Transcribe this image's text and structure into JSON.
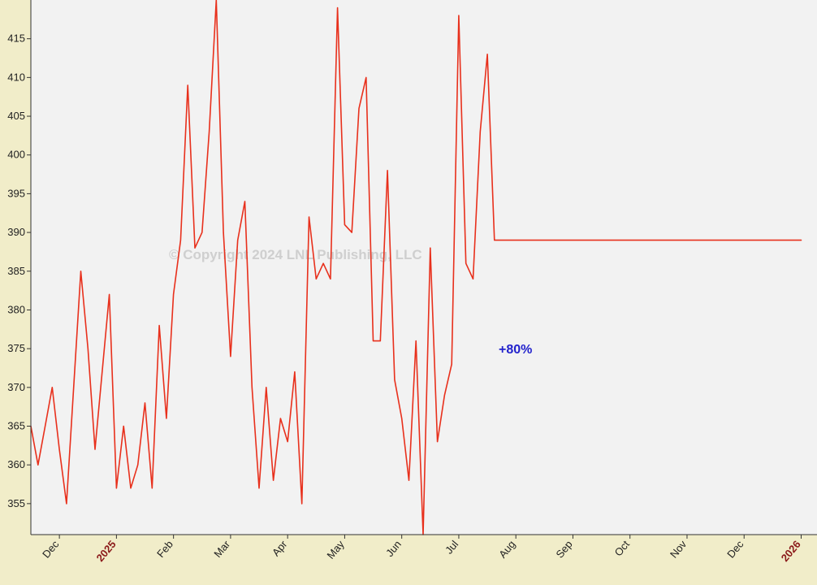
{
  "chart_data": {
    "type": "line",
    "title": "",
    "watermark": "© Copyright 2024 LNL Publishing, LLC",
    "annotation": "+80%",
    "ylim": [
      351,
      420
    ],
    "yticks": [
      355,
      360,
      365,
      370,
      375,
      380,
      385,
      390,
      395,
      400,
      405,
      410,
      415
    ],
    "grid": false,
    "month_ticks": [
      {
        "label": "Dec",
        "x": 1.0,
        "year": false
      },
      {
        "label": "2025",
        "x": 3.0,
        "year": true
      },
      {
        "label": "Feb",
        "x": 5.0,
        "year": false
      },
      {
        "label": "Mar",
        "x": 7.0,
        "year": false
      },
      {
        "label": "Apr",
        "x": 9.0,
        "year": false
      },
      {
        "label": "May",
        "x": 11.0,
        "year": false
      },
      {
        "label": "Jun",
        "x": 13.0,
        "year": false
      },
      {
        "label": "Jul",
        "x": 15.0,
        "year": false
      },
      {
        "label": "Aug",
        "x": 17.0,
        "year": false
      },
      {
        "label": "Sep",
        "x": 19.0,
        "year": false
      },
      {
        "label": "Oct",
        "x": 21.0,
        "year": false
      },
      {
        "label": "Nov",
        "x": 23.0,
        "year": false
      },
      {
        "label": "Dec",
        "x": 25.0,
        "year": false
      },
      {
        "label": "2026",
        "x": 27.0,
        "year": true
      }
    ],
    "x_range": [
      0,
      27.1
    ],
    "colors": {
      "red": "#e8301c",
      "gray": "#c4c4c4",
      "blue": "#1a1adf",
      "bars": "#000000",
      "plot_bg": "#f2f2f2",
      "page_bg": "#f1edc9"
    },
    "series": [
      {
        "color": "red",
        "width": 1.6,
        "x": [
          0,
          0.25,
          0.5,
          0.75,
          1,
          1.25,
          1.5,
          1.75,
          2,
          2.25,
          2.5,
          2.75,
          3,
          3.25,
          3.5,
          3.75,
          4,
          4.25,
          4.5,
          4.75,
          5,
          5.25,
          5.5,
          5.75,
          6,
          6.25,
          6.5,
          6.75,
          7,
          7.25,
          7.5,
          7.75,
          8,
          8.25,
          8.5,
          8.75,
          9,
          9.25,
          9.5,
          9.75,
          10,
          10.25,
          10.5,
          10.75,
          11,
          11.25,
          11.5,
          11.75,
          12,
          12.25,
          12.5,
          12.75,
          13,
          13.25,
          13.5,
          13.75,
          14,
          14.25,
          14.5,
          14.75,
          15,
          15.25,
          15.5,
          15.75,
          16,
          16.25,
          16.5,
          16.75,
          17,
          17.25,
          17.5,
          17.75,
          18,
          18.25,
          18.5,
          18.75,
          19,
          19.25,
          19.5,
          19.75,
          20,
          20.25,
          20.5,
          20.75,
          21,
          21.25,
          21.5,
          21.75,
          22,
          22.25,
          22.5,
          22.75,
          23,
          23.25,
          23.5,
          23.75,
          24,
          24.25,
          24.5,
          24.75,
          25,
          25.25,
          25.5,
          25.75,
          26,
          26.25,
          26.5,
          26.75,
          27
        ],
        "y": [
          365,
          360,
          365,
          370,
          362,
          355,
          370,
          385,
          375,
          362,
          372,
          382,
          357,
          365,
          357,
          360,
          368,
          357,
          378,
          366,
          382,
          389,
          409,
          388,
          390,
          403,
          420,
          390,
          374,
          389,
          394,
          370,
          357,
          370,
          358,
          366,
          363,
          372,
          355,
          392,
          384,
          386,
          384,
          419,
          391,
          390,
          406,
          410,
          376,
          376,
          398,
          371,
          366,
          358,
          376,
          351,
          388,
          363,
          369,
          373,
          418,
          386,
          384,
          403,
          413,
          389,
          389,
          389,
          389,
          389,
          389,
          389,
          389,
          389,
          389,
          389,
          389,
          389,
          389,
          389,
          389,
          389,
          389,
          389,
          389,
          389,
          389,
          389,
          389,
          389,
          389,
          389,
          389,
          389,
          389,
          389,
          389,
          389,
          389,
          389,
          389,
          389,
          389,
          389,
          389,
          389,
          389,
          389,
          389
        ]
      }
    ]
  }
}
